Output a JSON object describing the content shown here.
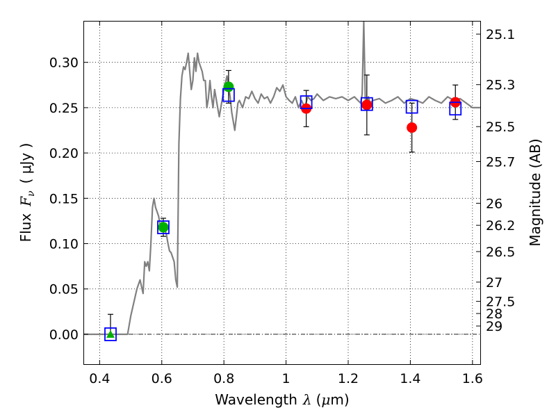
{
  "chart_data": {
    "type": "scatter",
    "xlabel": {
      "text": "Wavelength",
      "symbol": "λ",
      "unit_open": "(",
      "unit_mu": "μ",
      "unit_rest": "m)"
    },
    "ylabel": {
      "text": "Flux",
      "symbol": "F",
      "subscript": "ν",
      "unit": "( μJy )"
    },
    "y2label": "Magnitude (AB)",
    "xlim": [
      0.35,
      1.625
    ],
    "ylim": [
      -0.033,
      0.345
    ],
    "x_ticks": [
      0.4,
      0.6,
      0.8,
      1.0,
      1.2,
      1.4,
      1.6
    ],
    "x_tick_labels": [
      "0.4",
      "0.6",
      "0.8",
      "1",
      "1.2",
      "1.4",
      "1.6"
    ],
    "y_ticks": [
      0.0,
      0.05,
      0.1,
      0.15,
      0.2,
      0.25,
      0.3
    ],
    "y_tick_labels": [
      "0.00",
      "0.05",
      "0.10",
      "0.15",
      "0.20",
      "0.25",
      "0.30"
    ],
    "mag_ticks": [
      "25.1",
      "25.3",
      "25.5",
      "25.7",
      "26",
      "26.2",
      "26.5",
      "27",
      "27.5",
      "28",
      "29"
    ],
    "grid": true,
    "colors": {
      "template": "#808080",
      "model": "#0000ff",
      "green": "#00b000",
      "red": "#ff0000",
      "errorbar": "#000000"
    },
    "series": [
      {
        "marker": "line",
        "x": [
          0.35,
          0.49,
          0.5,
          0.52,
          0.53,
          0.54,
          0.545,
          0.55,
          0.555,
          0.56,
          0.565,
          0.57,
          0.575,
          0.58,
          0.585,
          0.59,
          0.595,
          0.6,
          0.605,
          0.61,
          0.615,
          0.62,
          0.625,
          0.63,
          0.635,
          0.64,
          0.645,
          0.65,
          0.655,
          0.66,
          0.665,
          0.67,
          0.675,
          0.68,
          0.685,
          0.69,
          0.695,
          0.7,
          0.705,
          0.71,
          0.715,
          0.72,
          0.725,
          0.73,
          0.735,
          0.74,
          0.745,
          0.75,
          0.755,
          0.76,
          0.765,
          0.77,
          0.775,
          0.78,
          0.785,
          0.79,
          0.795,
          0.8,
          0.81,
          0.82,
          0.825,
          0.83,
          0.835,
          0.84,
          0.845,
          0.85,
          0.86,
          0.87,
          0.88,
          0.89,
          0.9,
          0.91,
          0.92,
          0.93,
          0.94,
          0.95,
          0.96,
          0.97,
          0.98,
          0.99,
          1.0,
          1.01,
          1.02,
          1.03,
          1.04,
          1.05,
          1.06,
          1.07,
          1.08,
          1.09,
          1.1,
          1.12,
          1.14,
          1.16,
          1.18,
          1.2,
          1.22,
          1.24,
          1.245,
          1.25,
          1.255,
          1.26,
          1.265,
          1.27,
          1.28,
          1.3,
          1.32,
          1.34,
          1.36,
          1.38,
          1.4,
          1.42,
          1.44,
          1.46,
          1.48,
          1.5,
          1.52,
          1.54,
          1.56,
          1.58,
          1.6,
          1.625
        ],
        "y": [
          0.0,
          0.0,
          0.02,
          0.05,
          0.06,
          0.045,
          0.08,
          0.075,
          0.08,
          0.07,
          0.1,
          0.14,
          0.15,
          0.14,
          0.135,
          0.13,
          0.12,
          0.12,
          0.118,
          0.115,
          0.11,
          0.1,
          0.092,
          0.09,
          0.085,
          0.08,
          0.06,
          0.052,
          0.21,
          0.26,
          0.285,
          0.295,
          0.292,
          0.3,
          0.31,
          0.29,
          0.27,
          0.28,
          0.305,
          0.29,
          0.31,
          0.3,
          0.295,
          0.29,
          0.28,
          0.28,
          0.25,
          0.26,
          0.28,
          0.262,
          0.25,
          0.27,
          0.26,
          0.25,
          0.24,
          0.25,
          0.26,
          0.27,
          0.285,
          0.262,
          0.245,
          0.235,
          0.225,
          0.24,
          0.255,
          0.258,
          0.25,
          0.262,
          0.26,
          0.268,
          0.26,
          0.255,
          0.265,
          0.26,
          0.262,
          0.255,
          0.262,
          0.272,
          0.268,
          0.275,
          0.262,
          0.258,
          0.255,
          0.262,
          0.25,
          0.258,
          0.25,
          0.262,
          0.258,
          0.26,
          0.265,
          0.258,
          0.262,
          0.26,
          0.262,
          0.258,
          0.262,
          0.255,
          0.265,
          0.345,
          0.26,
          0.25,
          0.262,
          0.255,
          0.258,
          0.26,
          0.255,
          0.258,
          0.262,
          0.255,
          0.26,
          0.258,
          0.255,
          0.262,
          0.258,
          0.255,
          0.262,
          0.258,
          0.26,
          0.255,
          0.25,
          0.25
        ]
      },
      {
        "marker": "open-square",
        "color": "#0000ff",
        "x": [
          0.435,
          0.605,
          0.815,
          1.065,
          1.26,
          1.405,
          1.545
        ],
        "y": [
          0.0,
          0.118,
          0.264,
          0.256,
          0.254,
          0.251,
          0.249
        ]
      },
      {
        "marker": "filled-circle",
        "color": "#00b000",
        "x": [
          0.605,
          0.815
        ],
        "y": [
          0.118,
          0.273
        ],
        "err": [
          0.01,
          0.018
        ]
      },
      {
        "marker": "filled-triangle",
        "color": "#00b000",
        "x": [
          0.435
        ],
        "y": [
          0.0
        ],
        "err_up": [
          0.022
        ],
        "err_down": [
          0.0
        ]
      },
      {
        "marker": "filled-circle",
        "color": "#ff0000",
        "x": [
          1.065,
          1.26,
          1.405,
          1.545
        ],
        "y": [
          0.249,
          0.253,
          0.228,
          0.256
        ],
        "err": [
          0.02,
          0.033,
          0.027,
          0.019
        ]
      }
    ]
  }
}
